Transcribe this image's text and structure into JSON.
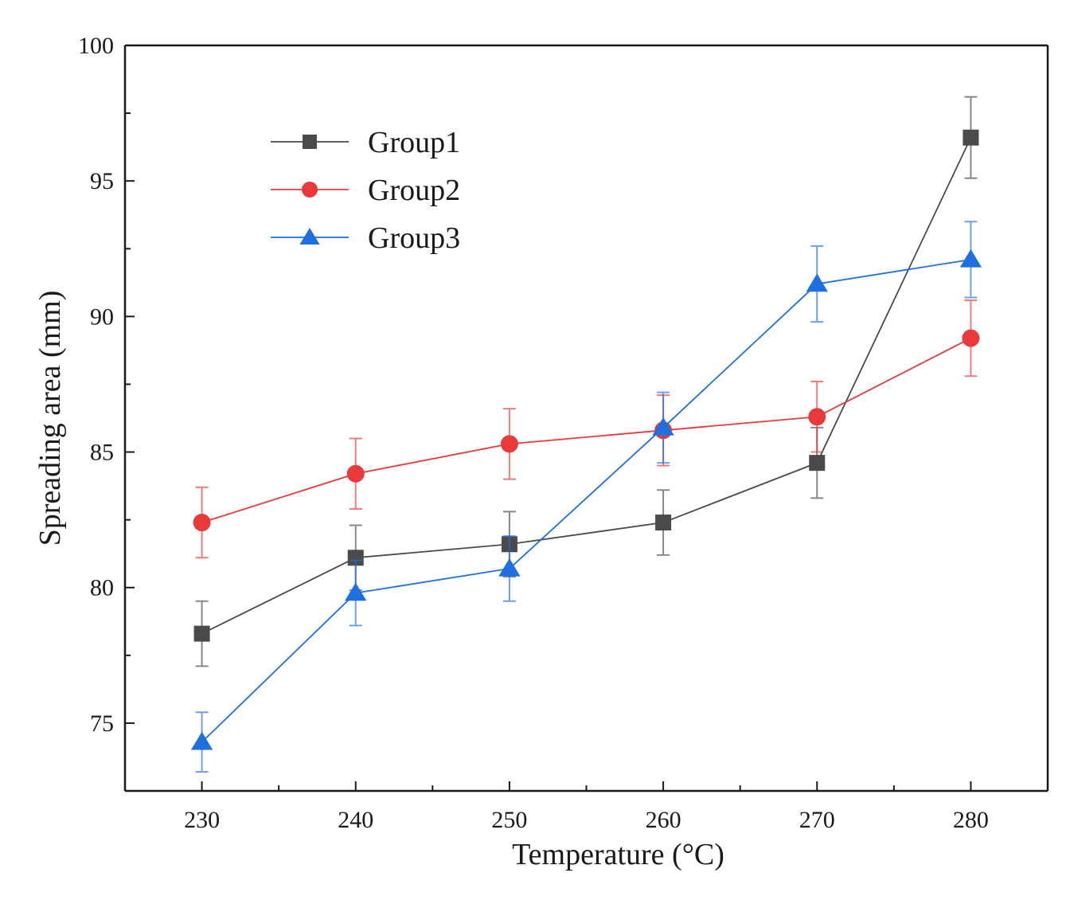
{
  "chart_data": {
    "type": "line",
    "title": "",
    "xlabel": "Temperature (°C)",
    "ylabel": "Spreading area (mm)",
    "x": [
      230,
      240,
      250,
      260,
      270,
      280
    ],
    "xlim": [
      225,
      285
    ],
    "ylim": [
      72.5,
      100
    ],
    "xticks": [
      230,
      240,
      250,
      260,
      270,
      280
    ],
    "yticks": [
      75,
      80,
      85,
      90,
      95,
      100
    ],
    "grid": false,
    "legend_position": "top-left",
    "series": [
      {
        "name": "Group1",
        "color": "#4a4a4a",
        "marker": "square",
        "values": [
          78.3,
          81.1,
          81.6,
          82.4,
          84.6,
          96.6
        ],
        "errors": [
          1.2,
          1.2,
          1.2,
          1.2,
          1.3,
          1.5
        ]
      },
      {
        "name": "Group2",
        "color": "#e8393b",
        "marker": "circle",
        "values": [
          82.4,
          84.2,
          85.3,
          85.8,
          86.3,
          89.2
        ],
        "errors": [
          1.3,
          1.3,
          1.3,
          1.3,
          1.3,
          1.4
        ]
      },
      {
        "name": "Group3",
        "color": "#1e6fe0",
        "marker": "triangle",
        "values": [
          74.3,
          79.8,
          80.7,
          85.9,
          91.2,
          92.1
        ],
        "errors": [
          1.1,
          1.2,
          1.2,
          1.3,
          1.4,
          1.4
        ]
      }
    ]
  }
}
